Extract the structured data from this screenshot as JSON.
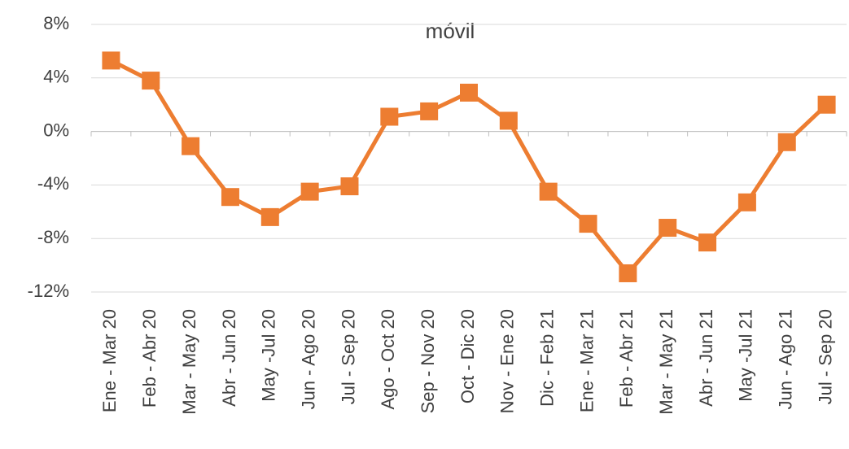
{
  "chart_data": {
    "type": "line",
    "title": "móvil",
    "categories": [
      "Ene - Mar 20",
      "Feb - Abr 20",
      "Mar - May 20",
      "Abr - Jun 20",
      "May -Jul 20",
      "Jun - Ago 20",
      "Jul - Sep 20",
      "Ago - Oct 20",
      "Sep - Nov 20",
      "Oct - Dic 20",
      "Nov - Ene 20",
      "Dic - Feb 21",
      "Ene - Mar 21",
      "Feb - Abr 21",
      "Mar - May 21",
      "Abr - Jun 21",
      "May -Jul 21",
      "Jun - Ago 21",
      "Jul - Sep 20"
    ],
    "values": [
      5.3,
      3.8,
      -1.1,
      -4.9,
      -6.4,
      -4.5,
      -4.1,
      1.1,
      1.5,
      2.9,
      0.8,
      -4.5,
      -6.9,
      -10.6,
      -7.2,
      -8.3,
      -5.3,
      -0.8,
      2.0
    ],
    "color": "#ed7d31",
    "ylim": [
      -12,
      8
    ],
    "yticks": [
      {
        "value": -12,
        "label": "-12%"
      },
      {
        "value": -8,
        "label": "-8%"
      },
      {
        "value": -4,
        "label": "-4%"
      },
      {
        "value": 0,
        "label": "0%"
      },
      {
        "value": 4,
        "label": "4%"
      },
      {
        "value": 8,
        "label": "8%"
      }
    ],
    "grid": true
  }
}
